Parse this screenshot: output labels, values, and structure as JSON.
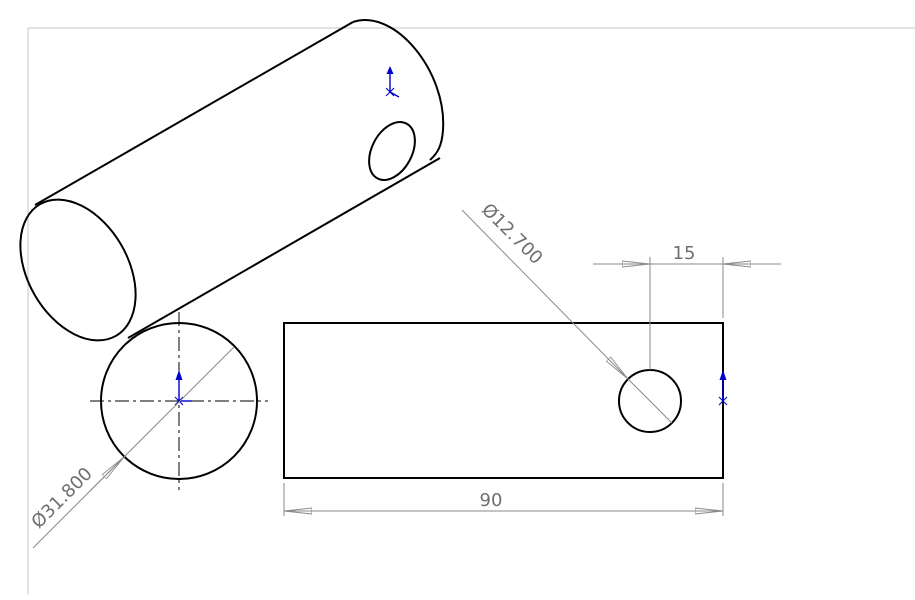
{
  "drawing": {
    "dimensions": {
      "side_diameter": "Ø31.800",
      "hole_diameter": "Ø12.700",
      "hole_offset": "15",
      "overall_length": "90"
    },
    "colors": {
      "geometry": "#000000",
      "dimension": "#8a8a8a",
      "dimension_text": "#6f6f6f",
      "sheet_border": "#c8c8c8",
      "origin_marker": "#0000cc"
    },
    "icons": {
      "origin_marker": "origin-triad-icon",
      "arrowhead": "dimension-arrowhead"
    }
  }
}
